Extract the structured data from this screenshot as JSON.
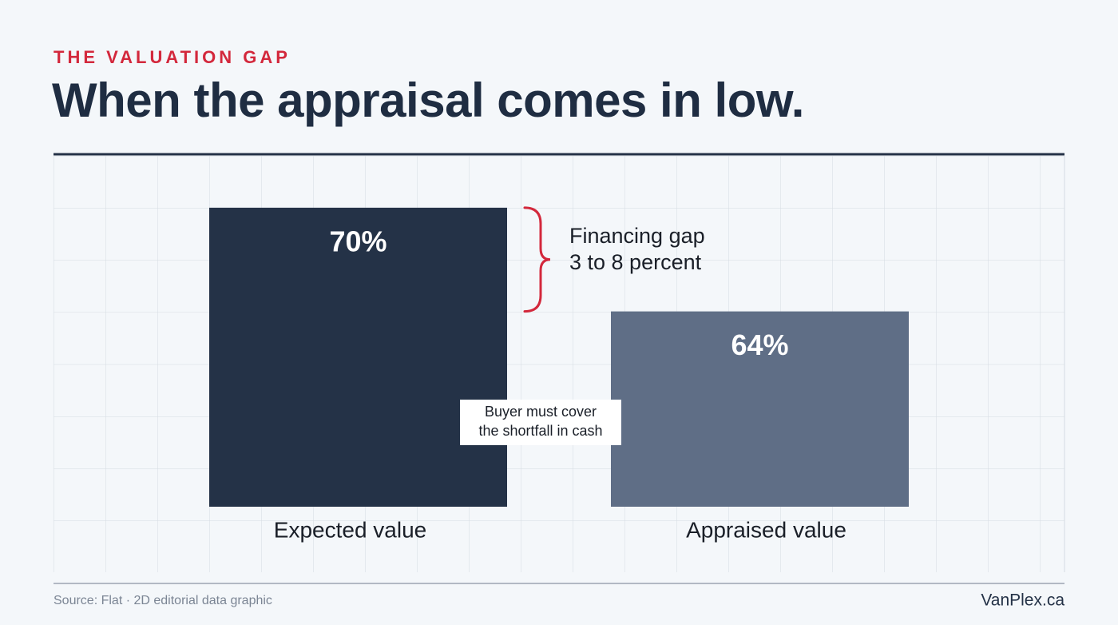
{
  "chart_data": {
    "type": "bar",
    "kicker": "THE VALUATION GAP",
    "title": "When the appraisal comes in low.",
    "categories": [
      "Expected value",
      "Appraised value"
    ],
    "values": [
      70,
      64
    ],
    "value_labels": [
      "70%",
      "64%"
    ],
    "colors": [
      "#243247",
      "#5f6e86"
    ],
    "ylim": [
      52.7,
      73
    ],
    "annotations": {
      "gap": [
        "Financing gap",
        "3 to 8 percent"
      ],
      "note": [
        "Buyer must cover",
        "the shortfall in cash"
      ]
    },
    "source": "Source: Flat · 2D editorial data graphic",
    "brand": "VanPlex.ca"
  }
}
